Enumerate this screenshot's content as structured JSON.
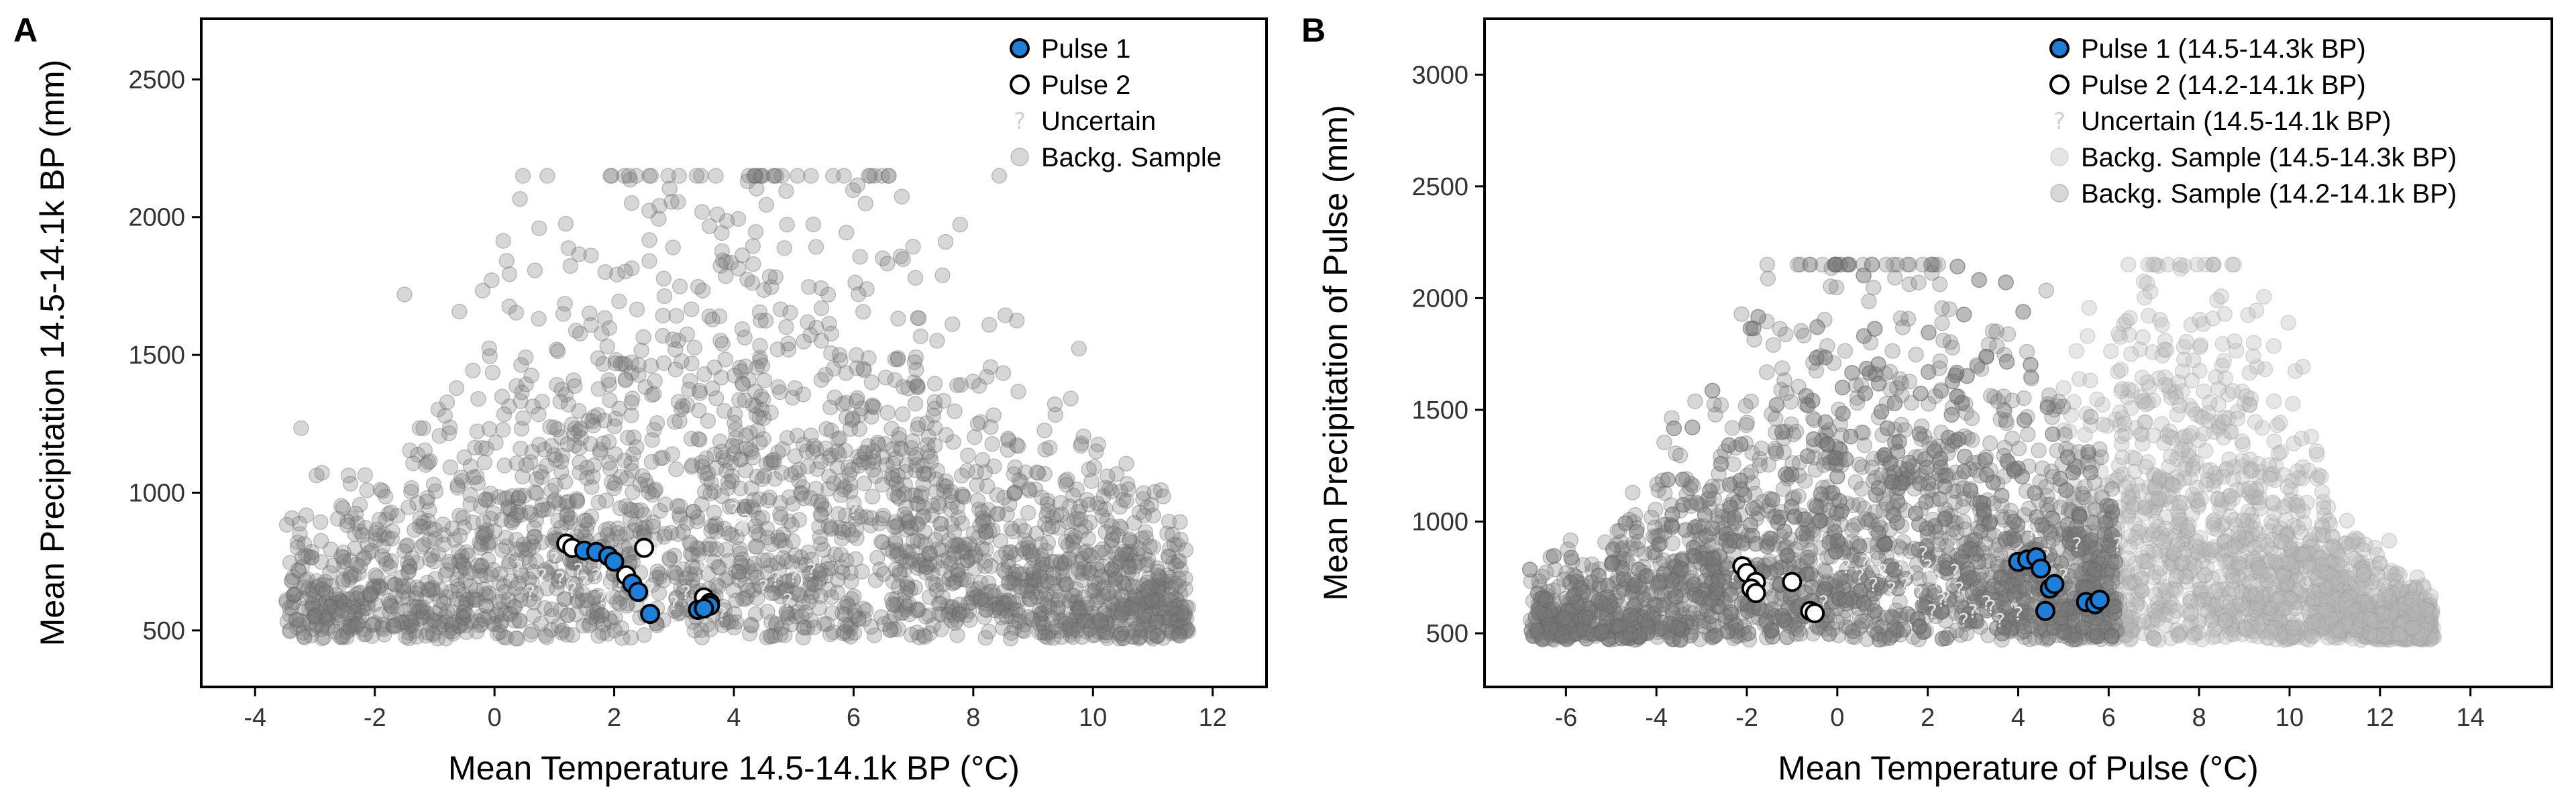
{
  "chart_data": [
    {
      "type": "scatter",
      "panel_label": "A",
      "xlabel": "Mean Temperature 14.5-14.1k BP (°C)",
      "ylabel": "Mean Precipitation 14.5-14.1k BP (mm)",
      "xlim": [
        -4.9,
        12.9
      ],
      "ylim": [
        295,
        2720
      ],
      "x_ticks": [
        -4,
        -2,
        0,
        2,
        4,
        6,
        8,
        10,
        12
      ],
      "y_ticks": [
        500,
        1000,
        1500,
        2000,
        2500
      ],
      "legend_position": "top-right",
      "legend": [
        {
          "label": "Pulse 1",
          "kind": "pulse1"
        },
        {
          "label": "Pulse 2",
          "kind": "pulse2"
        },
        {
          "label": "Uncertain",
          "kind": "uncertain"
        },
        {
          "label": "Backg. Sample",
          "kind": "bg1"
        }
      ],
      "series": [
        {
          "name": "Pulse 1",
          "kind": "pulse1",
          "x": [
            1.5,
            1.7,
            1.9,
            2.0,
            2.3,
            2.4,
            2.6,
            3.4,
            3.6,
            3.5
          ],
          "y": [
            790,
            785,
            770,
            750,
            670,
            640,
            560,
            575,
            590,
            580
          ]
        },
        {
          "name": "Pulse 2",
          "kind": "pulse2",
          "x": [
            1.2,
            1.3,
            2.2,
            2.5,
            3.5,
            3.6
          ],
          "y": [
            815,
            800,
            700,
            800,
            620,
            600
          ]
        },
        {
          "name": "Uncertain",
          "kind": "uncertain",
          "x": [
            0.4,
            0.8,
            1.0,
            1.3,
            1.5,
            1.7,
            1.9,
            2.1,
            2.4,
            2.7,
            3.0,
            3.2,
            3.5,
            3.8,
            4.0,
            4.2,
            4.5,
            4.7,
            5.0,
            5.3,
            6.0,
            1.8,
            2.2,
            0.6,
            1.4,
            2.6,
            3.3,
            4.1,
            4.9,
            1.1
          ],
          "y": [
            730,
            700,
            760,
            650,
            680,
            700,
            640,
            670,
            620,
            800,
            600,
            640,
            730,
            560,
            940,
            900,
            660,
            690,
            700,
            720,
            940,
            620,
            690,
            640,
            720,
            650,
            580,
            880,
            610,
            690
          ]
        },
        {
          "name": "Backg. Sample",
          "kind": "bg1",
          "generated": true
        }
      ]
    },
    {
      "type": "scatter",
      "panel_label": "B",
      "xlabel": "Mean Temperature of Pulse (°C)",
      "ylabel": "Mean Precipitation of Pulse (mm)",
      "xlim": [
        -7.8,
        15.8
      ],
      "ylim": [
        260,
        3250
      ],
      "x_ticks": [
        -6,
        -4,
        -2,
        0,
        2,
        4,
        6,
        8,
        10,
        12,
        14
      ],
      "y_ticks": [
        500,
        1000,
        1500,
        2000,
        2500,
        3000
      ],
      "legend_position": "top-right",
      "legend": [
        {
          "label": "Pulse 1 (14.5-14.3k BP)",
          "kind": "pulse1"
        },
        {
          "label": "Pulse 2 (14.2-14.1k BP)",
          "kind": "pulse2"
        },
        {
          "label": "Uncertain (14.5-14.1k BP)",
          "kind": "uncertain"
        },
        {
          "label": "Backg. Sample (14.5-14.3k BP)",
          "kind": "bg2"
        },
        {
          "label": "Backg. Sample (14.2-14.1k BP)",
          "kind": "bg1"
        }
      ],
      "series": [
        {
          "name": "Pulse 1 (14.5-14.3k BP)",
          "kind": "pulse1",
          "x": [
            4.0,
            4.2,
            4.4,
            4.5,
            4.7,
            4.8,
            4.6,
            5.5,
            5.7,
            5.8
          ],
          "y": [
            820,
            830,
            840,
            790,
            700,
            720,
            600,
            640,
            630,
            650
          ]
        },
        {
          "name": "Pulse 2 (14.2-14.1k BP)",
          "kind": "pulse2",
          "x": [
            -2.1,
            -2.0,
            -1.8,
            -1.9,
            -1.8,
            -1.0,
            -0.6,
            -0.5
          ],
          "y": [
            800,
            770,
            730,
            700,
            680,
            730,
            600,
            590
          ]
        },
        {
          "name": "Uncertain (14.5-14.1k BP)",
          "kind": "uncertain",
          "x": [
            -2.3,
            -0.3,
            0.2,
            0.5,
            0.8,
            1.0,
            1.2,
            1.4,
            1.6,
            1.8,
            2.0,
            2.2,
            2.4,
            2.6,
            2.8,
            3.0,
            3.3,
            3.6,
            4.0,
            4.3,
            4.6,
            5.0,
            5.3,
            6.2,
            6.4,
            1.5,
            2.1,
            0.6,
            2.7,
            3.4,
            1.9,
            2.3
          ],
          "y": [
            760,
            640,
            800,
            760,
            720,
            780,
            700,
            820,
            760,
            680,
            800,
            740,
            660,
            780,
            560,
            600,
            640,
            560,
            590,
            950,
            850,
            760,
            900,
            900,
            960,
            720,
            600,
            820,
            700,
            620,
            860,
            650
          ]
        },
        {
          "name": "Backg. Sample (14.5-14.3k BP)",
          "kind": "bg2",
          "generated": true
        },
        {
          "name": "Backg. Sample (14.2-14.1k BP)",
          "kind": "bg1",
          "generated": true
        }
      ]
    }
  ]
}
